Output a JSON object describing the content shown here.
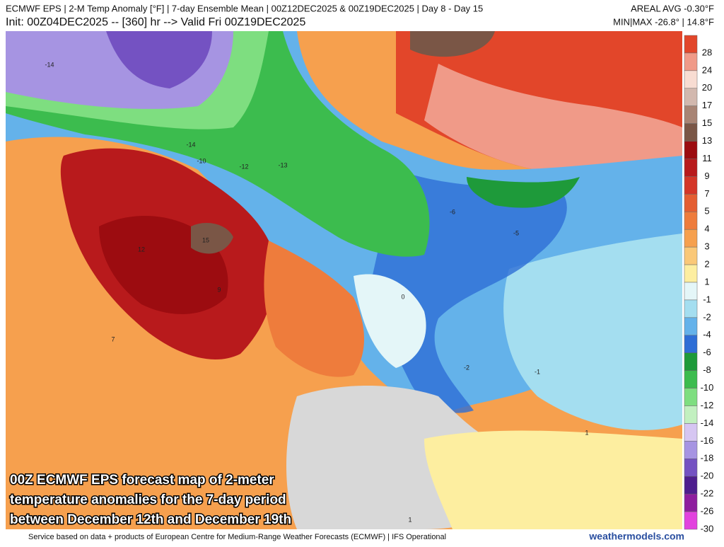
{
  "header": {
    "line1": "ECMWF EPS | 2-M Temp Anomaly [°F] | 7-day Ensemble Mean | 00Z12DEC2025 & 00Z19DEC2025 | Day 8 - Day 15",
    "line2": "Init: 00Z04DEC2025 -- [360] hr --> Valid Fri 00Z19DEC2025",
    "areal_avg": "AREAL AVG -0.30°F",
    "min_max": "MIN|MAX -26.8° | 14.8°F"
  },
  "colorbar": {
    "levels": [
      28,
      24,
      20,
      17,
      15,
      13,
      11,
      9,
      7,
      5,
      4,
      3,
      2,
      1,
      -1,
      -2,
      -4,
      -6,
      -8,
      -10,
      -12,
      -14,
      -16,
      -18,
      -20,
      -22,
      -26,
      -30
    ],
    "colors": [
      "#e2462a",
      "#f09a88",
      "#f8dcd2",
      "#d2b8ae",
      "#a88474",
      "#7a5646",
      "#9c0c10",
      "#b81a1c",
      "#d43628",
      "#e45e32",
      "#ee7c3c",
      "#f6a04e",
      "#fac878",
      "#fdeea0",
      "#e4f6f8",
      "#a4def0",
      "#64b2ea",
      "#2e6ed6",
      "#1e9a3a",
      "#3cbc4e",
      "#7ede80",
      "#c2f0c0",
      "#d6c6f2",
      "#a694e2",
      "#7452c2",
      "#4e1e8e",
      "#8e1e9e",
      "#e242de"
    ]
  },
  "map_labels": [
    "-14",
    "-14",
    "-10",
    "-12",
    "-13",
    "12",
    "15",
    "9",
    "7",
    "-6",
    "-5",
    "-2",
    "0",
    "1",
    "1",
    "-1"
  ],
  "caption": [
    "00Z ECMWF EPS forecast map of 2-meter",
    "temperature anomalies for the 7-day period",
    "between December 12th and December 19th"
  ],
  "footer": {
    "credit": "Service based on data + products of European Centre for Medium-Range Weather Forecasts (ECMWF) | IFS Operational",
    "site": "weathermodels.com"
  }
}
